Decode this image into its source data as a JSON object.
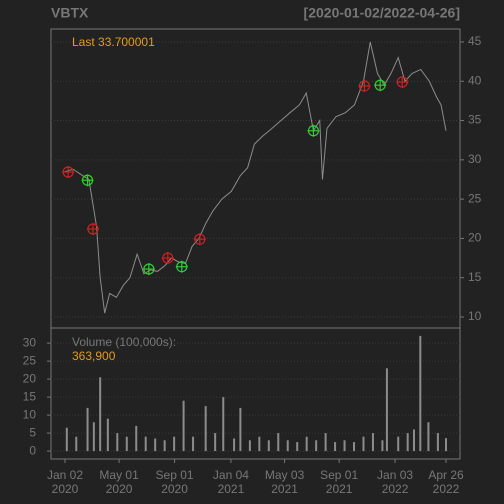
{
  "chart_data": [
    {
      "type": "line",
      "title": "VBTX",
      "subtitle": "[2020-01-02/2022-04-26]",
      "annotation": "Last 33.700001",
      "xlim": [
        "2020-01-02",
        "2022-04-26"
      ],
      "ylim": [
        8.6,
        46.65
      ],
      "yticks": [
        10,
        15,
        20,
        25,
        30,
        35,
        40,
        45
      ],
      "grid": true,
      "x": [
        "2020-01-02",
        "2020-01-20",
        "2020-02-10",
        "2020-02-24",
        "2020-03-05",
        "2020-03-12",
        "2020-03-20",
        "2020-03-30",
        "2020-04-10",
        "2020-04-25",
        "2020-05-10",
        "2020-05-25",
        "2020-06-10",
        "2020-06-25",
        "2020-07-10",
        "2020-07-25",
        "2020-08-10",
        "2020-08-25",
        "2020-09-10",
        "2020-09-25",
        "2020-10-10",
        "2020-10-25",
        "2020-11-10",
        "2020-11-25",
        "2020-12-15",
        "2021-01-05",
        "2021-01-25",
        "2021-02-10",
        "2021-02-25",
        "2021-03-15",
        "2021-04-05",
        "2021-04-25",
        "2021-05-15",
        "2021-06-05",
        "2021-06-20",
        "2021-07-06",
        "2021-07-20",
        "2021-07-26",
        "2021-08-05",
        "2021-08-25",
        "2021-09-15",
        "2021-10-05",
        "2021-10-25",
        "2021-11-09",
        "2021-11-25",
        "2021-12-10",
        "2021-12-25",
        "2022-01-10",
        "2022-01-25",
        "2022-02-10",
        "2022-03-01",
        "2022-03-20",
        "2022-04-05",
        "2022-04-15",
        "2022-04-26"
      ],
      "series": [
        {
          "color": "#8c8c8c",
          "values": [
            28.5,
            28.8,
            28.0,
            27.5,
            24,
            21.5,
            15,
            10.5,
            13,
            12.5,
            14,
            15,
            18,
            15.5,
            16,
            15.8,
            16.5,
            17.5,
            17,
            16.8,
            19,
            20,
            22,
            23.5,
            25,
            26,
            28,
            29,
            32,
            33,
            34,
            35,
            36,
            37,
            38.5,
            33.7,
            35,
            27.5,
            34,
            35.5,
            36,
            37,
            40,
            45,
            41,
            39.5,
            41,
            43,
            40,
            41,
            41.5,
            40,
            38,
            37,
            33.7
          ]
        }
      ],
      "markers": [
        {
          "color": "#33cc33",
          "x": [
            "2020-02-21",
            "2020-07-06",
            "2020-09-17",
            "2021-07-06",
            "2021-12-01"
          ],
          "values": [
            27.4,
            16.1,
            16.4,
            33.7,
            39.5
          ]
        },
        {
          "color": "#cc2222",
          "x": [
            "2020-01-09",
            "2020-03-04",
            "2020-08-17",
            "2020-10-27",
            "2021-10-27",
            "2022-01-19"
          ],
          "values": [
            28.45,
            21.2,
            17.5,
            19.9,
            39.4,
            39.9
          ]
        }
      ]
    },
    {
      "type": "bar",
      "annotations": [
        "Volume (100,000s):",
        "363,900"
      ],
      "xlim": [
        "2020-01-02",
        "2022-04-26"
      ],
      "ylim": [
        -2.2,
        34.2
      ],
      "yticks": [
        0,
        5,
        10,
        15,
        20,
        25,
        30
      ],
      "grid": true,
      "color": "#8c8c8c",
      "xticks": [
        {
          "value": "2020-01-02",
          "label": [
            "Jan 02",
            "2020"
          ]
        },
        {
          "value": "2020-05-01",
          "label": [
            "May 01",
            "2020"
          ]
        },
        {
          "value": "2020-09-01",
          "label": [
            "Sep 01",
            "2020"
          ]
        },
        {
          "value": "2021-01-04",
          "label": [
            "Jan 04",
            "2021"
          ]
        },
        {
          "value": "2021-05-03",
          "label": [
            "May 03",
            "2021"
          ]
        },
        {
          "value": "2021-09-01",
          "label": [
            "Sep 01",
            "2021"
          ]
        },
        {
          "value": "2022-01-03",
          "label": [
            "Jan 03",
            "2022"
          ]
        },
        {
          "value": "2022-04-26",
          "label": [
            "Apr 26",
            "2022"
          ]
        }
      ],
      "x": [
        "2020-01-06",
        "2020-01-27",
        "2020-02-21",
        "2020-03-06",
        "2020-03-20",
        "2020-04-06",
        "2020-04-27",
        "2020-05-18",
        "2020-06-08",
        "2020-06-29",
        "2020-07-20",
        "2020-08-10",
        "2020-08-31",
        "2020-09-21",
        "2020-10-12",
        "2020-11-09",
        "2020-11-30",
        "2020-12-18",
        "2021-01-11",
        "2021-01-25",
        "2021-02-15",
        "2021-03-08",
        "2021-03-29",
        "2021-04-19",
        "2021-05-10",
        "2021-05-31",
        "2021-06-21",
        "2021-07-12",
        "2021-08-02",
        "2021-08-23",
        "2021-09-13",
        "2021-10-04",
        "2021-10-25",
        "2021-11-15",
        "2021-12-06",
        "2021-12-16",
        "2022-01-10",
        "2022-01-31",
        "2022-02-14",
        "2022-02-28",
        "2022-03-18",
        "2022-04-08",
        "2022-04-26"
      ],
      "values": [
        6.5,
        4,
        12,
        8,
        20.5,
        9,
        5,
        4,
        7,
        4,
        3.5,
        3,
        4,
        14,
        4,
        12.5,
        5,
        15,
        3.5,
        12,
        3,
        4,
        3,
        5,
        3,
        2.5,
        4,
        3,
        5,
        2.5,
        3,
        2.5,
        4,
        5,
        3,
        23,
        4,
        5,
        6,
        32,
        8,
        5,
        3.6
      ]
    }
  ]
}
